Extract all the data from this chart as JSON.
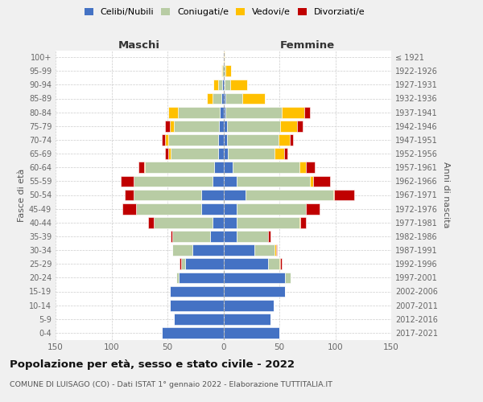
{
  "age_groups": [
    "0-4",
    "5-9",
    "10-14",
    "15-19",
    "20-24",
    "25-29",
    "30-34",
    "35-39",
    "40-44",
    "45-49",
    "50-54",
    "55-59",
    "60-64",
    "65-69",
    "70-74",
    "75-79",
    "80-84",
    "85-89",
    "90-94",
    "95-99",
    "100+"
  ],
  "birth_years": [
    "2017-2021",
    "2012-2016",
    "2007-2011",
    "2002-2006",
    "1997-2001",
    "1992-1996",
    "1987-1991",
    "1982-1986",
    "1977-1981",
    "1972-1976",
    "1967-1971",
    "1962-1966",
    "1957-1961",
    "1952-1956",
    "1947-1951",
    "1942-1946",
    "1937-1941",
    "1932-1936",
    "1927-1931",
    "1922-1926",
    "≤ 1921"
  ],
  "colors": {
    "celibi": "#4472c4",
    "coniugati": "#b8cca4",
    "vedovi": "#ffc000",
    "divorziati": "#c00000"
  },
  "males_celibi": [
    55,
    44,
    48,
    48,
    40,
    34,
    28,
    12,
    10,
    20,
    20,
    10,
    8,
    5,
    5,
    4,
    3,
    2,
    1,
    0,
    0
  ],
  "males_coniugati": [
    0,
    0,
    0,
    0,
    2,
    4,
    18,
    34,
    52,
    58,
    60,
    70,
    62,
    42,
    44,
    40,
    38,
    8,
    4,
    1,
    0
  ],
  "males_vedovi": [
    0,
    0,
    0,
    0,
    0,
    0,
    0,
    0,
    0,
    0,
    0,
    0,
    1,
    2,
    3,
    4,
    8,
    5,
    4,
    1,
    0
  ],
  "males_divorziati": [
    0,
    0,
    0,
    0,
    0,
    1,
    0,
    1,
    5,
    12,
    8,
    12,
    5,
    3,
    3,
    4,
    0,
    0,
    0,
    0,
    0
  ],
  "females_celibi": [
    50,
    42,
    45,
    55,
    55,
    40,
    28,
    12,
    12,
    12,
    20,
    12,
    8,
    4,
    3,
    3,
    2,
    2,
    1,
    0,
    0
  ],
  "females_coniugati": [
    0,
    0,
    0,
    0,
    5,
    10,
    18,
    28,
    56,
    62,
    78,
    65,
    60,
    42,
    46,
    48,
    50,
    15,
    5,
    2,
    0
  ],
  "females_vedovi": [
    0,
    0,
    0,
    0,
    0,
    1,
    1,
    0,
    1,
    0,
    1,
    3,
    6,
    8,
    10,
    15,
    20,
    20,
    15,
    5,
    1
  ],
  "females_divorziati": [
    0,
    0,
    0,
    0,
    0,
    1,
    1,
    2,
    5,
    12,
    18,
    15,
    8,
    3,
    3,
    5,
    5,
    0,
    0,
    0,
    0
  ],
  "title": "Popolazione per età, sesso e stato civile - 2022",
  "subtitle": "COMUNE DI LUISAGO (CO) - Dati ISTAT 1° gennaio 2022 - Elaborazione TUTTITALIA.IT",
  "xlabel_left": "Maschi",
  "xlabel_right": "Femmine",
  "ylabel_left": "Fasce di età",
  "ylabel_right": "Anni di nascita",
  "legend_labels": [
    "Celibi/Nubili",
    "Coniugati/e",
    "Vedovi/e",
    "Divorziati/e"
  ],
  "xlim": 150,
  "bg_color": "#f0f0f0",
  "plot_bg": "#ffffff"
}
